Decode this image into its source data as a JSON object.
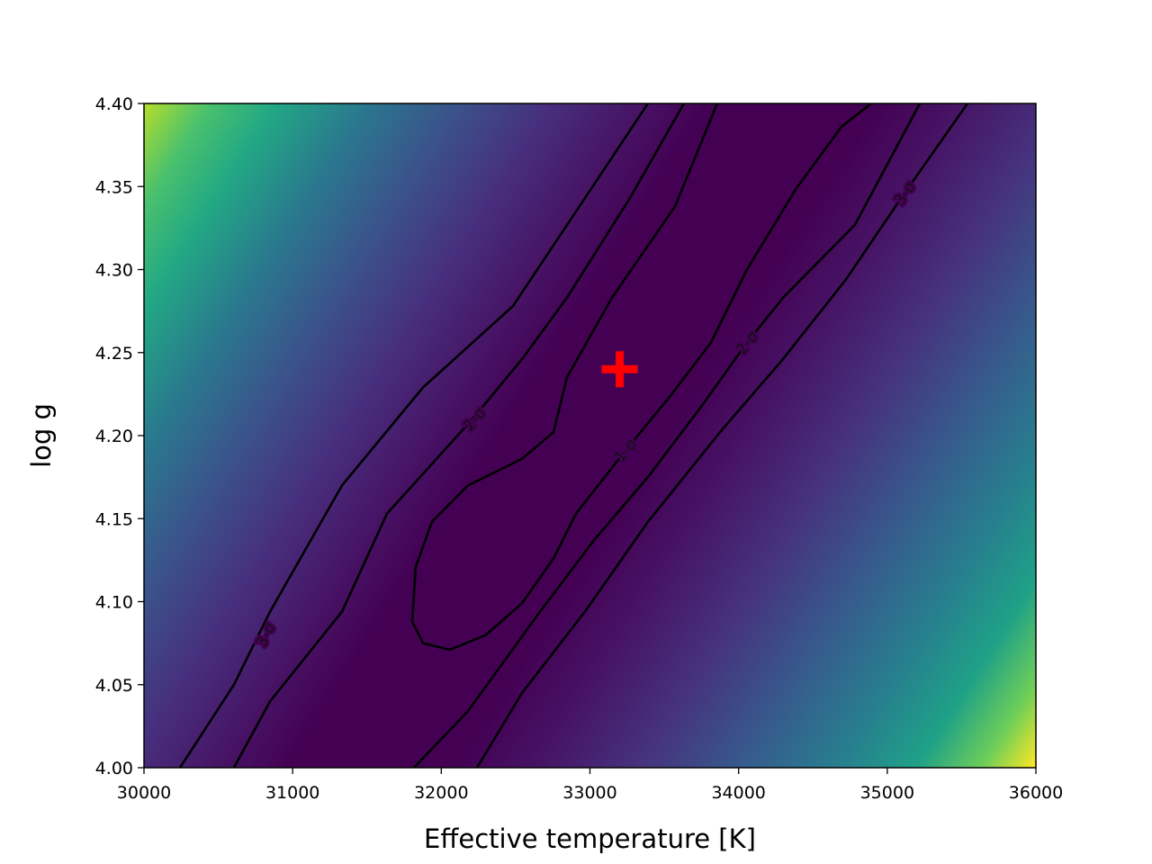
{
  "chart_data": {
    "type": "contour",
    "xlabel": "Effective temperature [K]",
    "ylabel": "log g",
    "xlim": [
      30000,
      36000
    ],
    "ylim": [
      4.0,
      4.4
    ],
    "xticks": [
      30000,
      31000,
      32000,
      33000,
      34000,
      35000,
      36000
    ],
    "yticks": [
      {
        "value": 4.0,
        "label": "4.00"
      },
      4.05,
      {
        "value": 4.1,
        "label": "4.10"
      },
      4.15,
      {
        "value": 4.2,
        "label": "4.20"
      },
      4.25,
      {
        "value": 4.3,
        "label": "4.30"
      },
      4.35,
      {
        "value": 4.4,
        "label": "4.40"
      }
    ],
    "colormap": "viridis",
    "line_color": "#000000",
    "contours": [
      {
        "label": "3-σ",
        "label_x": 30817,
        "label_y": 4.08,
        "x": [
          33390,
          32966,
          32482,
          31877,
          31332,
          30848,
          30605,
          30242
        ],
        "y": [
          4.4,
          4.343,
          4.278,
          4.229,
          4.17,
          4.094,
          4.05,
          4.0
        ]
      },
      {
        "label": "2-σ",
        "label_x": 32222,
        "label_y": 4.21,
        "x": [
          33632,
          33269,
          32845,
          32543,
          32210,
          31635,
          31332,
          30848,
          30605
        ],
        "y": [
          4.4,
          4.343,
          4.283,
          4.246,
          4.21,
          4.153,
          4.094,
          4.04,
          4.0
        ]
      },
      {
        "label": "1-σ",
        "label_x": 33239,
        "label_y": 4.191,
        "x": [
          33856,
          33572,
          33148,
          32845,
          32755,
          32543,
          32179,
          31937,
          31828,
          31804,
          31877,
          32058,
          32301,
          32543,
          32755,
          32906,
          33239,
          33542,
          33814,
          34056,
          34389,
          34692,
          34892
        ],
        "y": [
          4.4,
          4.338,
          4.283,
          4.235,
          4.202,
          4.186,
          4.17,
          4.148,
          4.121,
          4.088,
          4.075,
          4.071,
          4.08,
          4.099,
          4.126,
          4.153,
          4.191,
          4.224,
          4.256,
          4.3,
          4.349,
          4.386,
          4.4
        ]
      },
      {
        "label": "2-σ",
        "label_x": 34056,
        "label_y": 4.256,
        "x": [
          31816,
          32179,
          32664,
          33027,
          33390,
          33753,
          34056,
          34298,
          34783,
          35219
        ],
        "y": [
          4.0,
          4.034,
          4.094,
          4.137,
          4.175,
          4.218,
          4.256,
          4.283,
          4.327,
          4.4
        ]
      },
      {
        "label": "3-σ",
        "label_x": 35116,
        "label_y": 4.346,
        "x": [
          32240,
          32543,
          32966,
          33390,
          33874,
          34298,
          34722,
          35116,
          35540
        ],
        "y": [
          4.0,
          4.045,
          4.094,
          4.148,
          4.202,
          4.246,
          4.294,
          4.346,
          4.4
        ]
      }
    ],
    "marker": {
      "x": 33200,
      "y": 4.24,
      "color": "#ff0000"
    }
  }
}
